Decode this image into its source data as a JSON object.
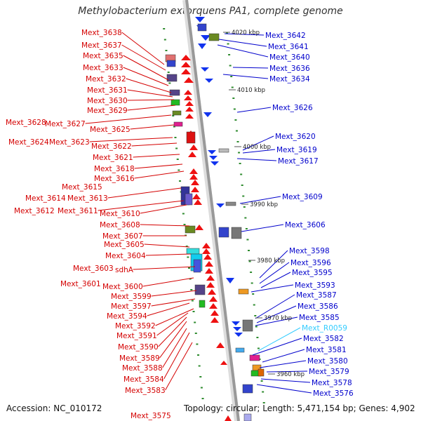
{
  "title": "Methylobacterium extorquens PA1, complete genome",
  "footer": {
    "accession": "Accession: NC_010172",
    "summary": "Topology: circular; Length: 5,471,154 bp; Genes: 4,902"
  },
  "colors": {
    "left_label": "#d40000",
    "right_label": "#0000cc",
    "rna_label": "#33ccff",
    "backbone": "#999999",
    "dot": "#2e8b2e"
  },
  "kbp_markers": [
    "4020 kbp",
    "4010 kbp",
    "4000 kbp",
    "3990 kbp",
    "3980 kbp",
    "3970 kbp",
    "3960 kbp"
  ],
  "left_labels": [
    "Mext_3638",
    "Mext_3637",
    "Mext_3635",
    "Mext_3633",
    "Mext_3632",
    "Mext_3631",
    "Mext_3630",
    "Mext_3629",
    "Mext_3628",
    "Mext_3627",
    "Mext_3625",
    "Mext_3624",
    "Mext_3623",
    "Mext_3622",
    "Mext_3621",
    "Mext_3618",
    "Mext_3616",
    "Mext_3615",
    "Mext_3614",
    "Mext_3613",
    "Mext_3612",
    "Mext_3611",
    "Mext_3610",
    "Mext_3608",
    "Mext_3607",
    "Mext_3605",
    "Mext_3604",
    "Mext_3603",
    "sdhA",
    "Mext_3601",
    "Mext_3600",
    "Mext_3599",
    "Mext_3597",
    "Mext_3594",
    "Mext_3592",
    "Mext_3591",
    "Mext_3590",
    "Mext_3589",
    "Mext_3588",
    "Mext_3584",
    "Mext_3583",
    "Mext_3575"
  ],
  "right_labels": [
    "Mext_3642",
    "Mext_3641",
    "Mext_3640",
    "Mext_3636",
    "Mext_3634",
    "Mext_3626",
    "Mext_3620",
    "Mext_3619",
    "Mext_3617",
    "Mext_3609",
    "Mext_3606",
    "Mext_3598",
    "Mext_3596",
    "Mext_3595",
    "Mext_3593",
    "Mext_3587",
    "Mext_3586",
    "Mext_3585",
    "Mext_R0059",
    "Mext_3582",
    "Mext_3581",
    "Mext_3580",
    "Mext_3579",
    "Mext_3578",
    "Mext_3576"
  ]
}
